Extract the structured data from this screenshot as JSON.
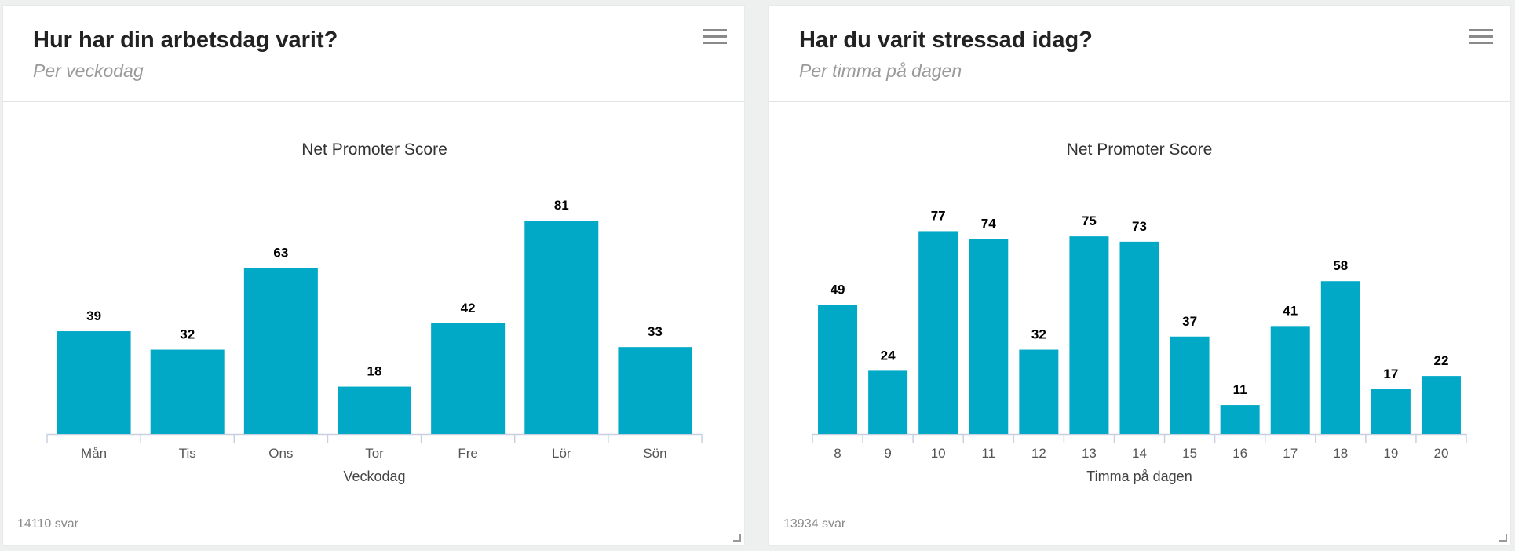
{
  "cards": [
    {
      "title": "Hur har din arbetsdag varit?",
      "subtitle": "Per veckodag",
      "footer": "14110 svar",
      "menu_icon": "hamburger-menu-icon",
      "chart_data": {
        "type": "bar",
        "title": "Net Promoter Score",
        "xlabel": "Veckodag",
        "ylabel": "",
        "categories": [
          "Mån",
          "Tis",
          "Ons",
          "Tor",
          "Fre",
          "Lör",
          "Sön"
        ],
        "values": [
          39,
          32,
          63,
          18,
          42,
          81,
          33
        ],
        "ylim": [
          0,
          81
        ],
        "grid": false,
        "legend": "none",
        "color": "#02a9c7"
      }
    },
    {
      "title": "Har du varit stressad idag?",
      "subtitle": "Per timma på dagen",
      "footer": "13934 svar",
      "menu_icon": "hamburger-menu-icon",
      "chart_data": {
        "type": "bar",
        "title": "Net Promoter Score",
        "xlabel": "Timma på dagen",
        "ylabel": "",
        "categories": [
          "8",
          "9",
          "10",
          "11",
          "12",
          "13",
          "14",
          "15",
          "16",
          "17",
          "18",
          "19",
          "20"
        ],
        "values": [
          49,
          24,
          77,
          74,
          32,
          75,
          73,
          37,
          11,
          41,
          58,
          17,
          22
        ],
        "ylim": [
          0,
          81
        ],
        "grid": false,
        "legend": "none",
        "color": "#02a9c7"
      }
    }
  ]
}
